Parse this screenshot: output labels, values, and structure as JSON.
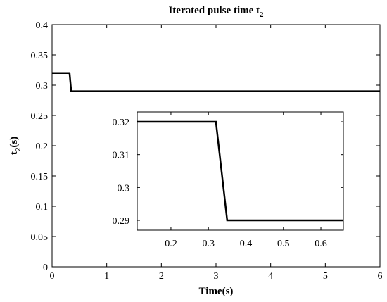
{
  "chart_data": [
    {
      "type": "line",
      "title": "Iterated pulse time t",
      "title_subscript": "2",
      "xlabel": "Time(s)",
      "ylabel": "t",
      "ylabel_subscript": "2",
      "ylabel_suffix": "(s)",
      "xlim": [
        0,
        6
      ],
      "ylim": [
        0,
        0.4
      ],
      "x_ticks": [
        0,
        1,
        2,
        3,
        4,
        5,
        6
      ],
      "x_tick_labels": [
        "0",
        "1",
        "2",
        "3",
        "4",
        "5",
        "6"
      ],
      "y_ticks": [
        0,
        0.05,
        0.1,
        0.15,
        0.2,
        0.25,
        0.3,
        0.35,
        0.4
      ],
      "y_tick_labels": [
        "0",
        "0.05",
        "0.1",
        "0.15",
        "0.2",
        "0.25",
        "0.3",
        "0.35",
        "0.4"
      ],
      "grid": false,
      "series": [
        {
          "x": [
            0,
            0.32,
            0.35,
            6
          ],
          "y": [
            0.32,
            0.32,
            0.29,
            0.29
          ]
        }
      ]
    },
    {
      "type": "line",
      "role": "inset",
      "xlim": [
        0.11,
        0.66
      ],
      "ylim": [
        0.287,
        0.323
      ],
      "x_ticks": [
        0.2,
        0.3,
        0.4,
        0.5,
        0.6
      ],
      "x_tick_labels": [
        "0.2",
        "0.3",
        "0.4",
        "0.5",
        "0.6"
      ],
      "y_ticks": [
        0.29,
        0.3,
        0.31,
        0.32
      ],
      "y_tick_labels": [
        "0.29",
        "0.3",
        "0.31",
        "0.32"
      ],
      "grid": false,
      "series": [
        {
          "x": [
            0.11,
            0.32,
            0.35,
            0.66
          ],
          "y": [
            0.32,
            0.32,
            0.29,
            0.29
          ]
        }
      ]
    }
  ]
}
